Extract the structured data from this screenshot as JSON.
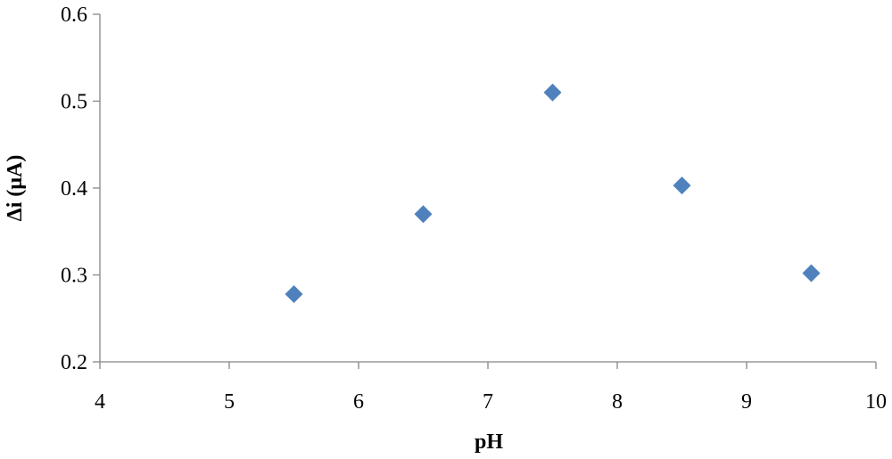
{
  "chart_data": {
    "type": "scatter",
    "title": "",
    "xlabel": "pH",
    "ylabel": "Δi  (μA)",
    "xlim": [
      4,
      10
    ],
    "ylim": [
      0.2,
      0.6
    ],
    "x_ticks": [
      "4",
      "5",
      "6",
      "7",
      "8",
      "9",
      "10"
    ],
    "y_ticks": [
      "0.2",
      "0.3",
      "0.4",
      "0.5",
      "0.6"
    ],
    "grid": false,
    "legend": "none",
    "marker": "diamond",
    "marker_color": "#4F81BD",
    "series": [
      {
        "x": [
          5.5,
          6.5,
          7.5,
          8.5,
          9.5
        ],
        "y": [
          0.278,
          0.37,
          0.51,
          0.403,
          0.302
        ]
      }
    ]
  }
}
